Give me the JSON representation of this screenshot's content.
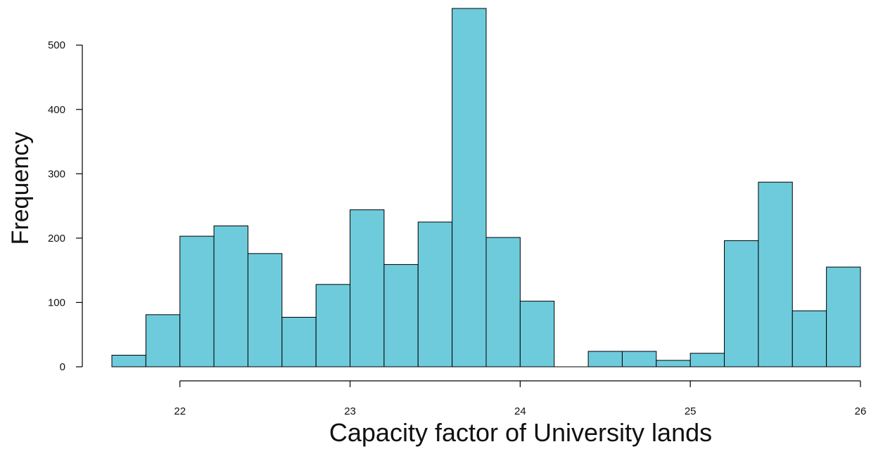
{
  "chart_data": {
    "type": "bar",
    "title": "",
    "xlabel": "Capacity factor of University lands",
    "ylabel": "Frequency",
    "bin_width": 0.2,
    "bin_starts": [
      21.6,
      21.8,
      22.0,
      22.2,
      22.4,
      22.6,
      22.8,
      23.0,
      23.2,
      23.4,
      23.6,
      23.8,
      24.0,
      24.2,
      24.4,
      24.6,
      24.8,
      25.0,
      25.2,
      25.4,
      25.6,
      25.8
    ],
    "values": [
      18,
      81,
      203,
      219,
      176,
      77,
      128,
      244,
      159,
      225,
      557,
      201,
      102,
      0,
      24,
      24,
      10,
      21,
      196,
      287,
      87,
      155
    ],
    "xlim": [
      21.6,
      26.0
    ],
    "ylim": [
      0,
      557
    ],
    "xticks": [
      22,
      23,
      24,
      25,
      26
    ],
    "yticks": [
      0,
      100,
      200,
      300,
      400,
      500
    ],
    "grid": false,
    "bar_color": "#6ecbdc"
  }
}
